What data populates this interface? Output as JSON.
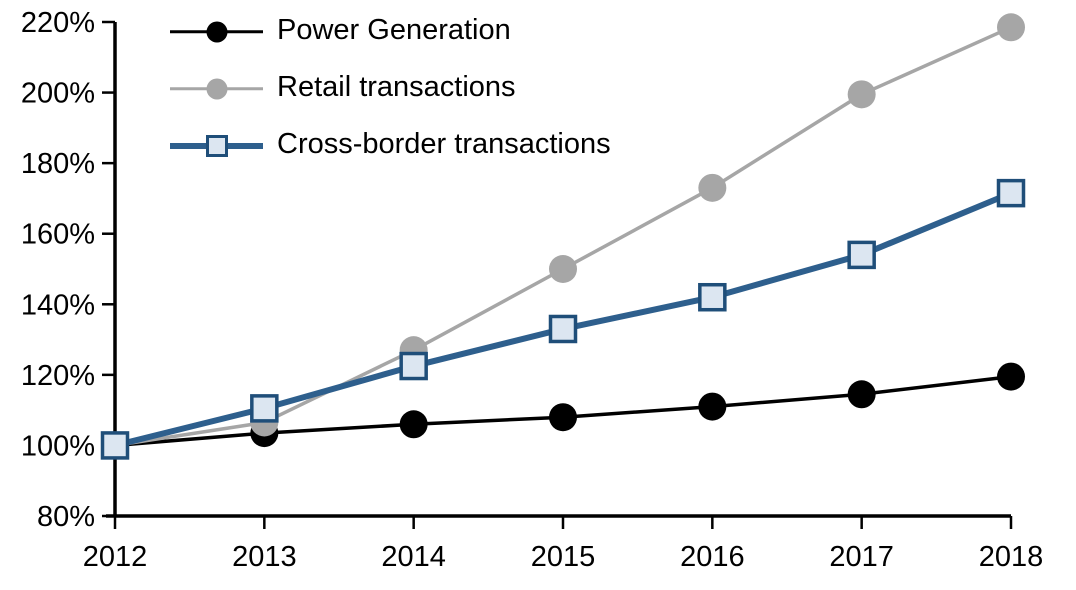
{
  "chart_data": {
    "type": "line",
    "title": "",
    "xlabel": "",
    "ylabel": "",
    "unit": "%",
    "x": [
      2012,
      2013,
      2014,
      2015,
      2016,
      2017,
      2018
    ],
    "series": [
      {
        "name": "Power Generation",
        "values": [
          100,
          103.5,
          106,
          108,
          111,
          114.5,
          119.5
        ],
        "color": "#000000",
        "marker": "circle",
        "marker_fill": "#000000",
        "line_width": 3.5
      },
      {
        "name": "Retail transactions",
        "values": [
          100,
          106.5,
          127,
          150,
          173,
          199.5,
          218.5
        ],
        "color": "#a6a6a6",
        "marker": "circle",
        "marker_fill": "#a6a6a6",
        "line_width": 3.5
      },
      {
        "name": "Cross-border transactions",
        "values": [
          100,
          110.5,
          122.5,
          133,
          142,
          154,
          171.5
        ],
        "color": "#2e5f8d",
        "marker": "square",
        "marker_fill": "#dce6f1",
        "marker_border": "#1f4e79",
        "line_width": 6
      }
    ],
    "ylim": [
      80,
      220
    ],
    "ytick_step": 20,
    "ytick_format": "percent",
    "xtick_labels": [
      "2012",
      "2013",
      "2014",
      "2015",
      "2016",
      "2017",
      "2018"
    ],
    "ytick_labels": [
      "80%",
      "100%",
      "120%",
      "140%",
      "160%",
      "180%",
      "200%",
      "220%"
    ],
    "grid": false,
    "legend_position": "top-left-inside",
    "axis_color": "#000000"
  }
}
